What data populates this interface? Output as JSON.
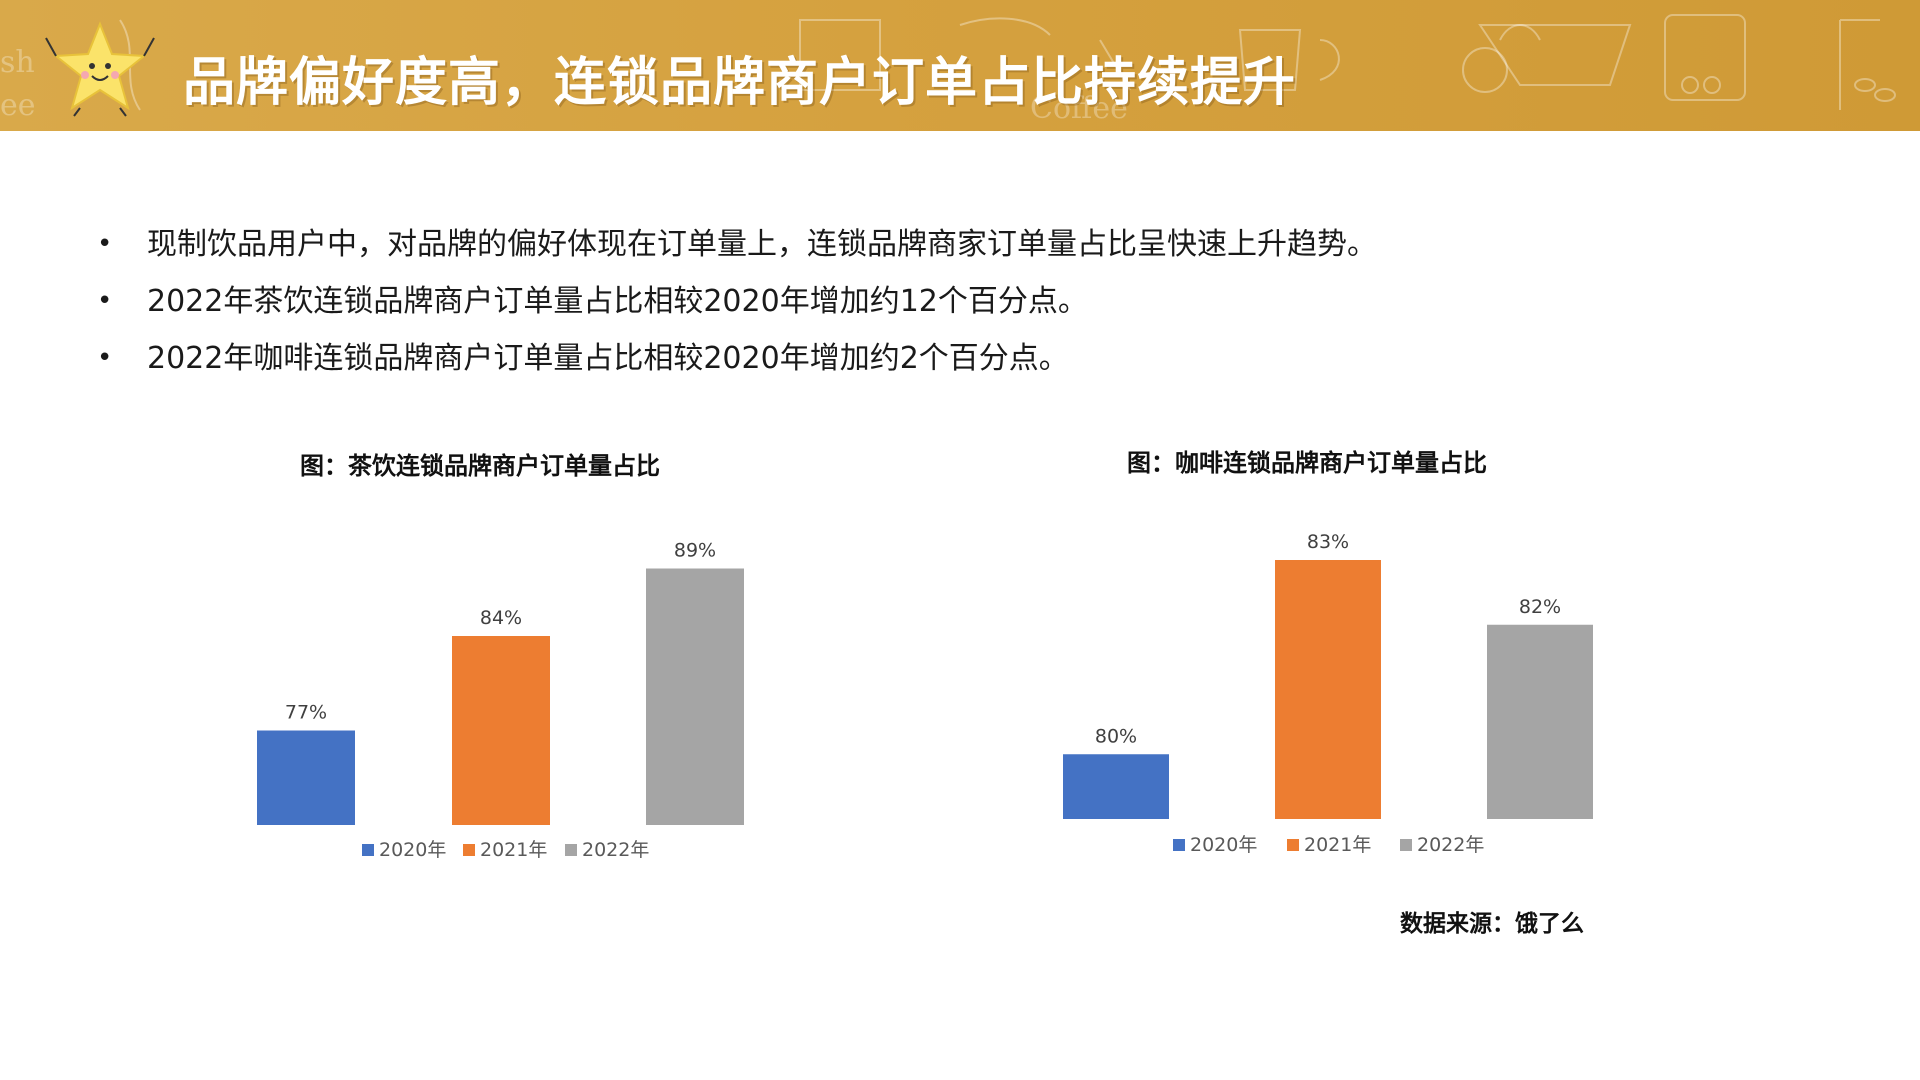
{
  "header": {
    "title": "品牌偏好度高，连锁品牌商户订单占比持续提升",
    "icon": "star-mascot"
  },
  "bullets": [
    "现制饮品用户中，对品牌的偏好体现在订单量上，连锁品牌商家订单量占比呈快速上升趋势。",
    "2022年茶饮连锁品牌商户订单量占比相较2020年增加约12个百分点。",
    "2022年咖啡连锁品牌商户订单量占比相较2020年增加约2个百分点。"
  ],
  "bullet_symbol": "•",
  "colors": {
    "banner": "#d5a13f",
    "series_2020": "#4472c4",
    "series_2021": "#ed7d31",
    "series_2022": "#a5a5a5"
  },
  "chart_data": [
    {
      "type": "bar",
      "title": "图：茶饮连锁品牌商户订单量占比",
      "categories": [
        "2020年",
        "2021年",
        "2022年"
      ],
      "values": [
        77,
        84,
        89
      ],
      "value_labels": [
        "77%",
        "84%",
        "89%"
      ],
      "unit": "%",
      "legend": [
        "2020年",
        "2021年",
        "2022年"
      ],
      "legend_position": "bottom",
      "grid": false,
      "ylim": [
        70,
        90
      ]
    },
    {
      "type": "bar",
      "title": "图：咖啡连锁品牌商户订单量占比",
      "categories": [
        "2020年",
        "2021年",
        "2022年"
      ],
      "values": [
        80,
        83,
        82
      ],
      "value_labels": [
        "80%",
        "83%",
        "82%"
      ],
      "unit": "%",
      "legend": [
        "2020年",
        "2021年",
        "2022年"
      ],
      "legend_position": "bottom",
      "grid": false,
      "ylim": [
        79,
        83
      ]
    }
  ],
  "source_note": "数据来源：饿了么"
}
